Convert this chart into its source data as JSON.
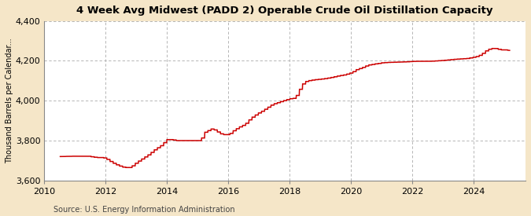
{
  "title": "4 Week Avg Midwest (PADD 2) Operable Crude Oil Distillation Capacity",
  "ylabel": "Thousand Barrels per Calendar...",
  "source": "Source: U.S. Energy Information Administration",
  "line_color": "#cc0000",
  "fig_bg_color": "#f5e6c8",
  "plot_bg_color": "#ffffff",
  "grid_color": "#aaaaaa",
  "ylim": [
    3600,
    4400
  ],
  "yticks": [
    3600,
    3800,
    4000,
    4200,
    4400
  ],
  "xlim": [
    2010,
    2025.7
  ],
  "xticks": [
    2010,
    2012,
    2014,
    2016,
    2018,
    2020,
    2022,
    2024
  ],
  "key_points": [
    [
      2010.5,
      3720
    ],
    [
      2011.0,
      3722
    ],
    [
      2011.4,
      3722
    ],
    [
      2011.7,
      3715
    ],
    [
      2011.9,
      3715
    ],
    [
      2012.0,
      3710
    ],
    [
      2012.2,
      3690
    ],
    [
      2012.4,
      3675
    ],
    [
      2012.6,
      3665
    ],
    [
      2012.8,
      3665
    ],
    [
      2013.0,
      3690
    ],
    [
      2013.2,
      3710
    ],
    [
      2013.4,
      3730
    ],
    [
      2013.6,
      3755
    ],
    [
      2013.8,
      3775
    ],
    [
      2014.0,
      3805
    ],
    [
      2014.15,
      3805
    ],
    [
      2014.3,
      3800
    ],
    [
      2014.6,
      3800
    ],
    [
      2014.9,
      3800
    ],
    [
      2015.0,
      3800
    ],
    [
      2015.1,
      3800
    ],
    [
      2015.2,
      3840
    ],
    [
      2015.3,
      3845
    ],
    [
      2015.4,
      3858
    ],
    [
      2015.5,
      3858
    ],
    [
      2015.6,
      3848
    ],
    [
      2015.7,
      3838
    ],
    [
      2015.8,
      3830
    ],
    [
      2015.9,
      3830
    ],
    [
      2016.0,
      3830
    ],
    [
      2016.1,
      3840
    ],
    [
      2016.2,
      3855
    ],
    [
      2016.3,
      3862
    ],
    [
      2016.4,
      3872
    ],
    [
      2016.5,
      3878
    ],
    [
      2016.6,
      3890
    ],
    [
      2016.7,
      3908
    ],
    [
      2016.8,
      3920
    ],
    [
      2016.9,
      3930
    ],
    [
      2017.0,
      3940
    ],
    [
      2017.1,
      3948
    ],
    [
      2017.2,
      3958
    ],
    [
      2017.3,
      3968
    ],
    [
      2017.4,
      3978
    ],
    [
      2017.5,
      3985
    ],
    [
      2017.6,
      3990
    ],
    [
      2017.7,
      3995
    ],
    [
      2017.8,
      4000
    ],
    [
      2017.9,
      4005
    ],
    [
      2018.0,
      4010
    ],
    [
      2018.1,
      4010
    ],
    [
      2018.2,
      4020
    ],
    [
      2018.3,
      4050
    ],
    [
      2018.4,
      4080
    ],
    [
      2018.5,
      4095
    ],
    [
      2018.6,
      4100
    ],
    [
      2018.8,
      4105
    ],
    [
      2019.0,
      4108
    ],
    [
      2019.2,
      4112
    ],
    [
      2019.4,
      4118
    ],
    [
      2019.6,
      4125
    ],
    [
      2019.8,
      4130
    ],
    [
      2020.0,
      4140
    ],
    [
      2020.1,
      4148
    ],
    [
      2020.2,
      4158
    ],
    [
      2020.3,
      4162
    ],
    [
      2020.4,
      4168
    ],
    [
      2020.5,
      4175
    ],
    [
      2020.6,
      4180
    ],
    [
      2020.7,
      4182
    ],
    [
      2020.8,
      4185
    ],
    [
      2020.9,
      4187
    ],
    [
      2021.0,
      4190
    ],
    [
      2021.2,
      4192
    ],
    [
      2021.4,
      4193
    ],
    [
      2021.6,
      4194
    ],
    [
      2021.8,
      4195
    ],
    [
      2022.0,
      4197
    ],
    [
      2022.2,
      4198
    ],
    [
      2022.4,
      4198
    ],
    [
      2022.6,
      4198
    ],
    [
      2022.8,
      4200
    ],
    [
      2023.0,
      4202
    ],
    [
      2023.2,
      4205
    ],
    [
      2023.4,
      4208
    ],
    [
      2023.6,
      4210
    ],
    [
      2023.8,
      4212
    ],
    [
      2024.0,
      4218
    ],
    [
      2024.1,
      4222
    ],
    [
      2024.2,
      4228
    ],
    [
      2024.3,
      4238
    ],
    [
      2024.4,
      4250
    ],
    [
      2024.5,
      4258
    ],
    [
      2024.6,
      4262
    ],
    [
      2024.7,
      4262
    ],
    [
      2024.8,
      4258
    ],
    [
      2024.9,
      4255
    ],
    [
      2025.0,
      4255
    ],
    [
      2025.2,
      4252
    ]
  ]
}
